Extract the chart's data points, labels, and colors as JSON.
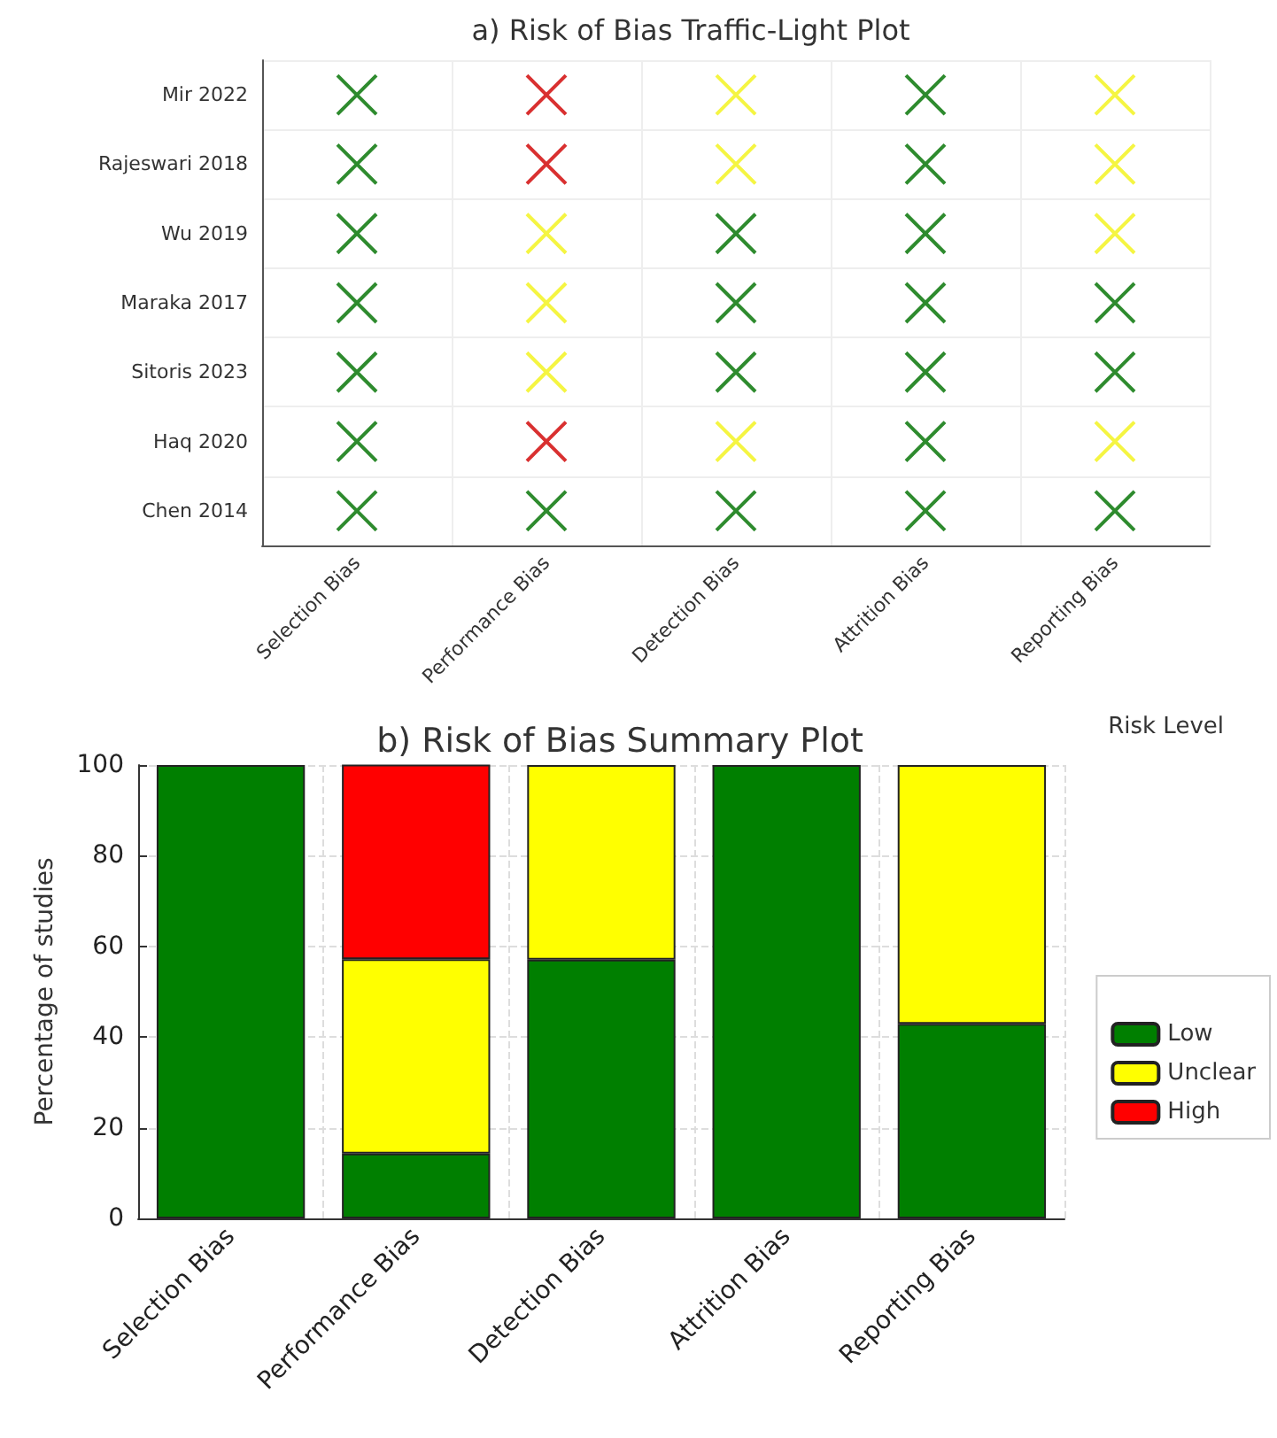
{
  "chart_data": [
    {
      "type": "other",
      "title": "a) Risk of Bias Traffic-Light Plot",
      "categories": [
        "Selection Bias",
        "Performance Bias",
        "Detection Bias",
        "Attrition Bias",
        "Reporting Bias"
      ],
      "y_categories": [
        "Mir 2022",
        "Rajeswari 2018",
        "Wu 2019",
        "Maraka 2017",
        "Sitoris 2023",
        "Haq 2020",
        "Chen 2014"
      ],
      "colors": [
        "#2e8b2e",
        "#d93030",
        "#f5f542",
        "#2e8b2e",
        "#f5f542",
        "#2e8b2e",
        "#d93030",
        "#f5f542",
        "#2e8b2e",
        "#f5f542",
        "#2e8b2e",
        "#f5f542",
        "#2e8b2e",
        "#2e8b2e",
        "#f5f542",
        "#2e8b2e",
        "#f5f542",
        "#2e8b2e",
        "#2e8b2e",
        "#2e8b2e",
        "#2e8b2e",
        "#f5f542",
        "#2e8b2e",
        "#2e8b2e",
        "#2e8b2e",
        "#2e8b2e",
        "#d93030",
        "#f5f542",
        "#2e8b2e",
        "#f5f542",
        "#2e8b2e",
        "#2e8b2e",
        "#2e8b2e",
        "#2e8b2e",
        "#2e8b2e"
      ]
    },
    {
      "type": "bar",
      "title": "b) Risk of Bias Summary Plot",
      "ylabel": "Percentage of studies",
      "legend_title": "Risk Level",
      "categories": [
        "Selection Bias",
        "Performance Bias",
        "Detection Bias",
        "Attrition Bias",
        "Reporting Bias"
      ],
      "series": [
        {
          "name": "Low",
          "color": "#007f00",
          "values": [
            100,
            14.3,
            57.1,
            100,
            42.9
          ]
        },
        {
          "name": "Unclear",
          "color": "#ffff00",
          "values": [
            0,
            42.9,
            42.9,
            0,
            57.1
          ]
        },
        {
          "name": "High",
          "color": "#ff0000",
          "values": [
            0,
            42.9,
            0,
            0,
            0
          ]
        }
      ],
      "stacked": true,
      "ylim": [
        0,
        100
      ],
      "yticks": [
        0,
        20,
        40,
        60,
        80,
        100
      ],
      "grid": true,
      "legend": "right"
    }
  ]
}
